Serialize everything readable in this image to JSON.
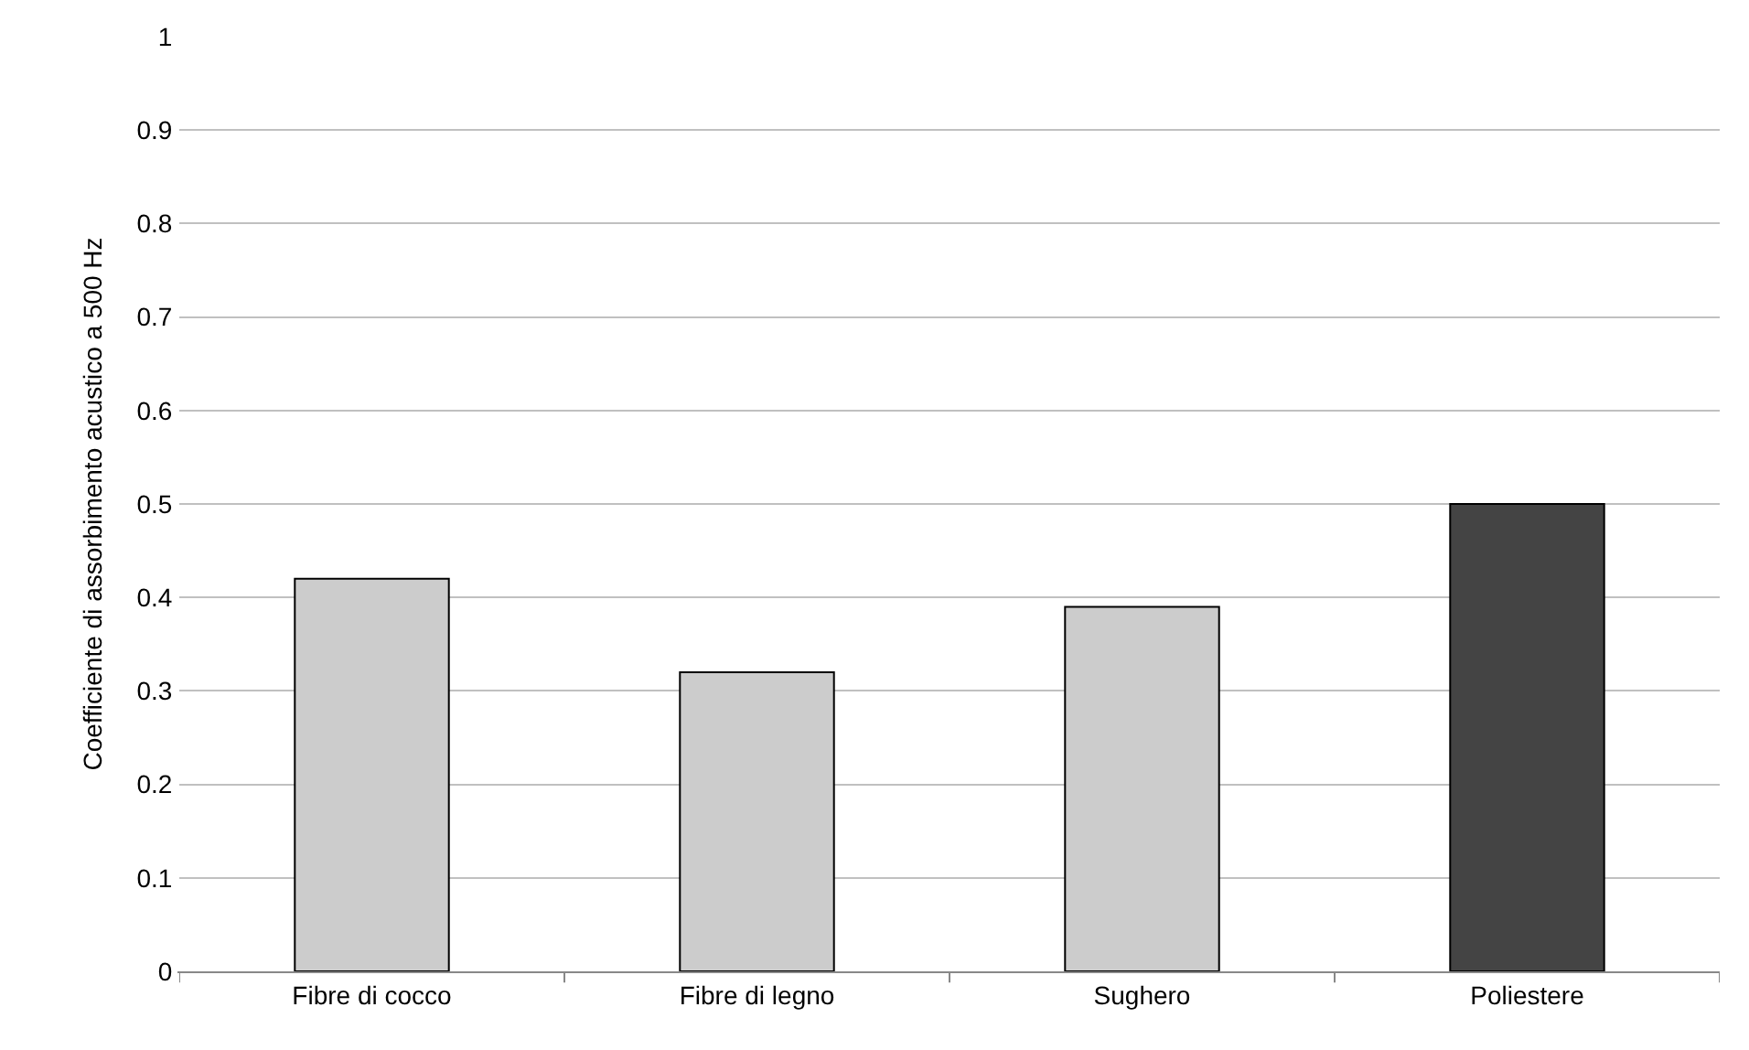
{
  "chart_data": {
    "type": "bar",
    "ylabel": "Coefficiente di assorbimento acustico a 500 Hz",
    "categories": [
      "Fibre di cocco",
      "Fibre di legno",
      "Sughero",
      "Poliestere"
    ],
    "values": [
      0.42,
      0.32,
      0.39,
      0.5
    ],
    "colors": [
      "#cccccc",
      "#cccccc",
      "#cccccc",
      "#444444"
    ],
    "ylim": [
      0,
      1
    ],
    "yticks": [
      0,
      0.1,
      0.2,
      0.3,
      0.4,
      0.5,
      0.6,
      0.7,
      0.8,
      0.9,
      1
    ],
    "grid": "y"
  }
}
